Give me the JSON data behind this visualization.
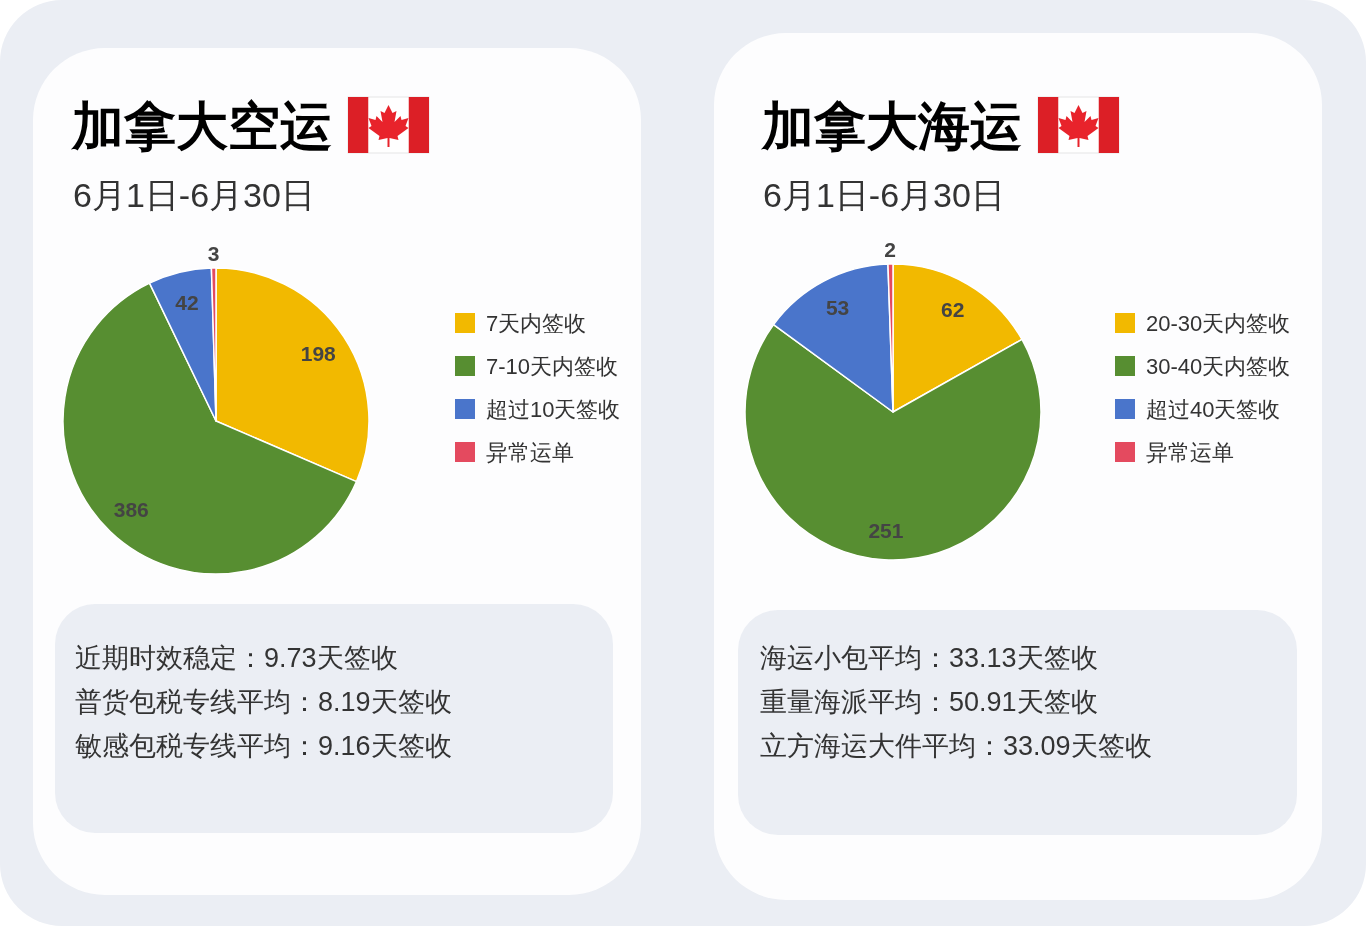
{
  "chart_data": [
    {
      "type": "pie",
      "title": "加拿大空运",
      "subtitle": "6月1日-6月30日",
      "categories": [
        "7天内签收",
        "7-10天内签收",
        "超过10天签收",
        "异常运单"
      ],
      "values": [
        198,
        386,
        42,
        3
      ],
      "colors": [
        "#f2b900",
        "#578e31",
        "#4a75cb",
        "#e44a5f"
      ],
      "data_labels": true,
      "legend": "right",
      "annotations": [
        "近期时效稳定：9.73天签收",
        "普货包税专线平均：8.19天签收",
        "敏感包税专线平均：9.16天签收"
      ]
    },
    {
      "type": "pie",
      "title": "加拿大海运",
      "subtitle": "6月1日-6月30日",
      "categories": [
        "20-30天内签收",
        "30-40天内签收",
        "超过40天签收",
        "异常运单"
      ],
      "values": [
        62,
        251,
        53,
        2
      ],
      "colors": [
        "#f2b900",
        "#578e31",
        "#4a75cb",
        "#e44a5f"
      ],
      "data_labels": true,
      "legend": "right",
      "annotations": [
        "海运小包平均：33.13天签收",
        "重量海派平均：50.91天签收",
        "立方海运大件平均：33.09天签收"
      ]
    }
  ]
}
